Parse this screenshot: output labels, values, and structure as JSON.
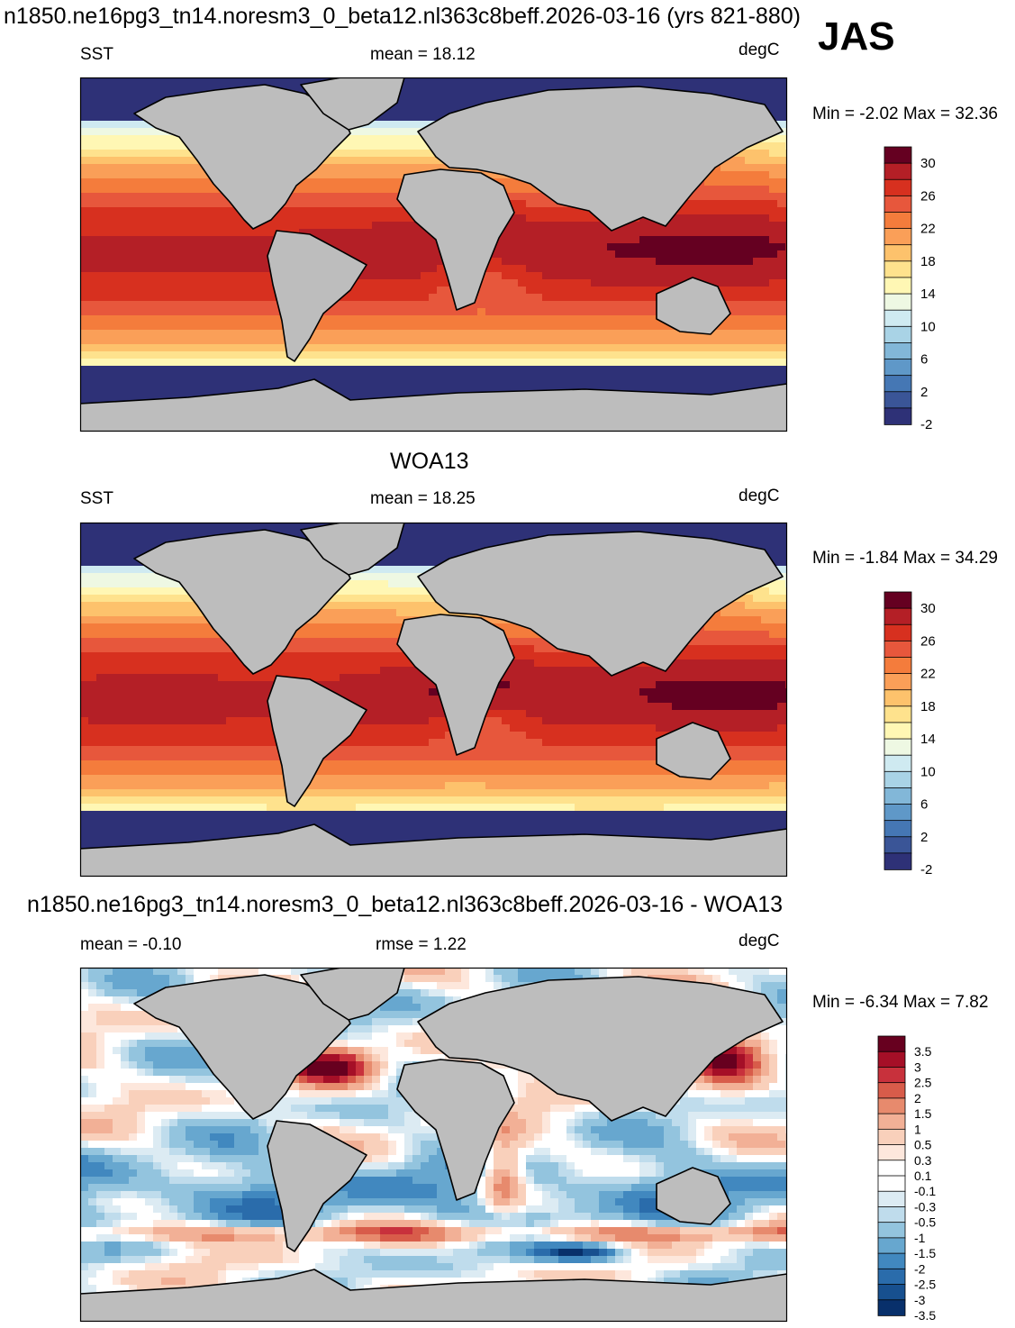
{
  "header": {
    "title": "n1850.ne16pg3_tn14.noresm3_0_beta12.nl363c8beff.2026-03-16 (yrs 821-880)",
    "season": "JAS"
  },
  "panels": [
    {
      "title": "",
      "left_label": "SST",
      "center_label": "mean =  18.12",
      "units": "degC",
      "minmax": "Min =  -2.02 Max =  32.36",
      "colorbar_labels": [
        "30",
        "26",
        "22",
        "18",
        "14",
        "10",
        "6",
        "2",
        "-2"
      ]
    },
    {
      "title": "WOA13",
      "left_label": "SST",
      "center_label": "mean =  18.25",
      "units": "degC",
      "minmax": "Min =  -1.84 Max =  34.29",
      "colorbar_labels": [
        "30",
        "26",
        "22",
        "18",
        "14",
        "10",
        "6",
        "2",
        "-2"
      ]
    },
    {
      "title": "n1850.ne16pg3_tn14.noresm3_0_beta12.nl363c8beff.2026-03-16 - WOA13",
      "left_label": "mean =  -0.10",
      "center_label": "rmse =   1.22",
      "units": "degC",
      "minmax": "Min =  -6.34 Max =   7.82",
      "colorbar_labels": [
        "3.5",
        "3",
        "2.5",
        "2",
        "1.5",
        "1",
        "0.5",
        "0.3",
        "0.1",
        "-0.1",
        "-0.3",
        "-0.5",
        "-1",
        "-1.5",
        "-2",
        "-2.5",
        "-3",
        "-3.5"
      ]
    }
  ],
  "palettes": {
    "sst": [
      "#650021",
      "#b41f26",
      "#d7301f",
      "#e7573c",
      "#f47c3c",
      "#fa9f58",
      "#fdc26c",
      "#fee28d",
      "#fff7b4",
      "#eef8e3",
      "#cfeaf1",
      "#a9d3e6",
      "#82b7d8",
      "#5f98c8",
      "#4577b4",
      "#3a5597",
      "#2e3177"
    ],
    "diff": [
      "#67001f",
      "#a50f27",
      "#c8313c",
      "#d85c4a",
      "#e78a6d",
      "#f2b096",
      "#f9d0bb",
      "#fde7dc",
      "#ffffff",
      "#ffffff",
      "#dcebf3",
      "#bfdcec",
      "#93c4de",
      "#67a7cf",
      "#4188bf",
      "#2a6cab",
      "#17508f",
      "#08306b"
    ]
  },
  "map_colors": {
    "land": "#bdbdbd",
    "outline": "#000000"
  }
}
